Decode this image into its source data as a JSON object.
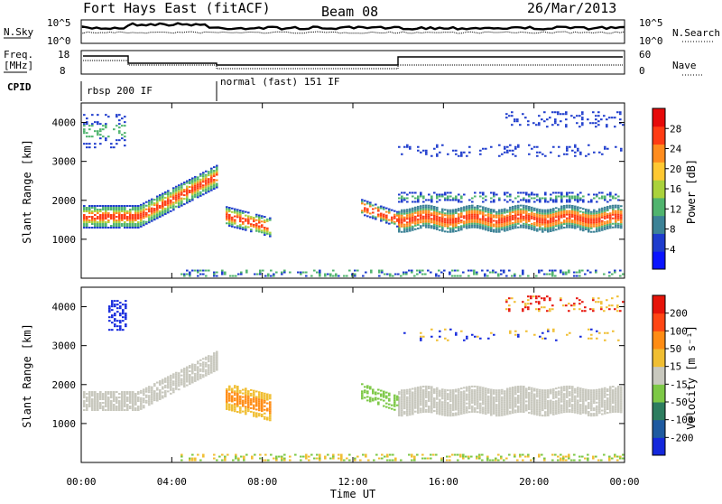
{
  "header": {
    "station": "Fort Hays East (fitACF)",
    "beam": "Beam 08",
    "date": "26/Mar/2013"
  },
  "panels": {
    "nsky_label": "N.Sky",
    "nsearch_label": "N.Search",
    "freq_label_1": "Freq.",
    "freq_label_2": "[MHz]",
    "nave_label": "Nave",
    "cpid_label": "CPID",
    "nsky_ticks": [
      "10^5",
      "10^0"
    ],
    "nsearch_ticks": [
      "10^5",
      "10^0"
    ],
    "freq_ticks": [
      "18",
      "8"
    ],
    "nave_ticks": [
      "60",
      "0"
    ],
    "cpid_segments": [
      {
        "start": 0,
        "end": 6,
        "label": "rbsp 200 IF"
      },
      {
        "start": 6,
        "end": 24,
        "label": "normal (fast) 151 IF"
      }
    ]
  },
  "chart_data": [
    {
      "type": "heatmap",
      "name": "power",
      "ylabel": "Slant Range [km]",
      "xlim": [
        0,
        24
      ],
      "ylim": [
        0,
        4500
      ],
      "yticks": [
        1000,
        2000,
        3000,
        4000
      ],
      "colorbar_label": "Power [dB]",
      "colorbar_ticks": [
        "28",
        "24",
        "20",
        "16",
        "12",
        "8",
        "4"
      ],
      "colors": [
        "#0a14ff",
        "#1e3ccd",
        "#3c8296",
        "#50b46e",
        "#aad23c",
        "#ffc832",
        "#ff8c1e",
        "#ff3c14",
        "#e60a0a"
      ]
    },
    {
      "type": "heatmap",
      "name": "velocity",
      "ylabel": "Slant Range [km]",
      "xlabel": "Time UT",
      "xlim": [
        0,
        24
      ],
      "ylim": [
        0,
        4500
      ],
      "yticks": [
        1000,
        2000,
        3000,
        4000
      ],
      "xticks": [
        "00:00",
        "04:00",
        "08:00",
        "12:00",
        "16:00",
        "20:00",
        "00:00"
      ],
      "colorbar_label": "Velocity [m s⁻¹]",
      "colorbar_ticks": [
        "200",
        "100",
        "50",
        "15",
        "-15",
        "-50",
        "-100",
        "-200"
      ],
      "colors": [
        "#1428dc",
        "#1e5aa0",
        "#2d7d5f",
        "#7dc846",
        "#c8c8be",
        "#f0be32",
        "#ff8c14",
        "#ff4614",
        "#e6140a"
      ]
    }
  ]
}
